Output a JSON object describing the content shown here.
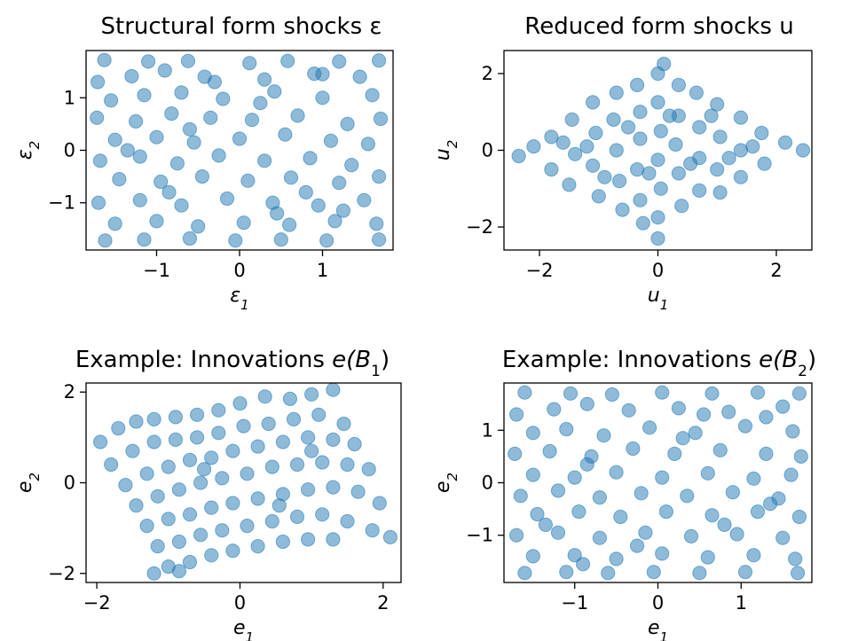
{
  "chart_data": [
    {
      "type": "scatter",
      "title": "Structural form shocks ε",
      "xlabel": "ε",
      "xlabel_sub": "1",
      "ylabel": "ε",
      "ylabel_sub": "2",
      "xlim": [
        -1.85,
        1.85
      ],
      "ylim": [
        -1.9,
        1.9
      ],
      "xticks": [
        -1,
        0,
        1
      ],
      "yticks": [
        -1,
        0,
        1
      ],
      "color": "#1f77b4",
      "points": [
        [
          -1.63,
          1.72
        ],
        [
          -1.1,
          1.69
        ],
        [
          -0.62,
          1.7
        ],
        [
          0.12,
          1.66
        ],
        [
          0.58,
          1.7
        ],
        [
          1.2,
          1.69
        ],
        [
          1.68,
          1.71
        ],
        [
          -1.71,
          1.3
        ],
        [
          -1.3,
          1.41
        ],
        [
          -0.9,
          1.52
        ],
        [
          -0.42,
          1.4
        ],
        [
          0.3,
          1.35
        ],
        [
          0.9,
          1.46
        ],
        [
          1.45,
          1.4
        ],
        [
          -1.55,
          0.95
        ],
        [
          -1.15,
          1.05
        ],
        [
          -0.7,
          1.1
        ],
        [
          -0.2,
          0.98
        ],
        [
          0.42,
          1.12
        ],
        [
          1.0,
          1.0
        ],
        [
          1.6,
          1.05
        ],
        [
          -1.72,
          0.62
        ],
        [
          -1.25,
          0.55
        ],
        [
          -0.82,
          0.7
        ],
        [
          -0.35,
          0.62
        ],
        [
          0.15,
          0.58
        ],
        [
          0.7,
          0.66
        ],
        [
          1.3,
          0.5
        ],
        [
          1.7,
          0.6
        ],
        [
          -1.5,
          0.2
        ],
        [
          -1.0,
          0.25
        ],
        [
          -0.55,
          0.15
        ],
        [
          0.0,
          0.22
        ],
        [
          0.55,
          0.3
        ],
        [
          1.1,
          0.18
        ],
        [
          1.55,
          0.12
        ],
        [
          -1.68,
          -0.2
        ],
        [
          -1.2,
          -0.12
        ],
        [
          -0.75,
          -0.25
        ],
        [
          -0.25,
          -0.1
        ],
        [
          0.3,
          -0.2
        ],
        [
          0.85,
          -0.15
        ],
        [
          1.35,
          -0.28
        ],
        [
          -1.45,
          -0.55
        ],
        [
          -0.95,
          -0.6
        ],
        [
          -0.45,
          -0.5
        ],
        [
          0.1,
          -0.58
        ],
        [
          0.62,
          -0.52
        ],
        [
          1.2,
          -0.62
        ],
        [
          1.68,
          -0.5
        ],
        [
          -1.7,
          -1.0
        ],
        [
          -1.2,
          -0.95
        ],
        [
          -0.7,
          -1.05
        ],
        [
          -0.15,
          -0.92
        ],
        [
          0.4,
          -1.0
        ],
        [
          0.95,
          -1.05
        ],
        [
          1.5,
          -0.95
        ],
        [
          -1.5,
          -1.4
        ],
        [
          -1.0,
          -1.35
        ],
        [
          -0.5,
          -1.45
        ],
        [
          0.05,
          -1.38
        ],
        [
          0.6,
          -1.42
        ],
        [
          1.15,
          -1.35
        ],
        [
          1.65,
          -1.4
        ],
        [
          -1.62,
          -1.72
        ],
        [
          -1.15,
          -1.7
        ],
        [
          -0.6,
          -1.68
        ],
        [
          -0.05,
          -1.72
        ],
        [
          0.5,
          -1.7
        ],
        [
          1.05,
          -1.72
        ],
        [
          1.68,
          -1.7
        ],
        [
          -0.85,
          -0.8
        ],
        [
          -0.6,
          0.4
        ],
        [
          0.25,
          0.9
        ],
        [
          0.8,
          -0.8
        ],
        [
          1.0,
          1.45
        ],
        [
          -1.35,
          0.0
        ],
        [
          0.45,
          -1.2
        ],
        [
          -0.3,
          1.3
        ],
        [
          1.25,
          -1.15
        ]
      ]
    },
    {
      "type": "scatter",
      "title": "Reduced form shocks u",
      "xlabel": "u",
      "xlabel_sub": "1",
      "ylabel": "u",
      "ylabel_sub": "2",
      "xlim": [
        -2.6,
        2.6
      ],
      "ylim": [
        -2.6,
        2.6
      ],
      "xticks": [
        -2,
        0,
        2
      ],
      "yticks": [
        -2,
        0,
        2
      ],
      "color": "#1f77b4",
      "points": [
        [
          -2.35,
          -0.15
        ],
        [
          -2.1,
          0.1
        ],
        [
          -1.8,
          0.35
        ],
        [
          -1.8,
          -0.5
        ],
        [
          -1.45,
          0.8
        ],
        [
          -1.4,
          -0.1
        ],
        [
          -1.5,
          -0.9
        ],
        [
          -1.1,
          1.25
        ],
        [
          -1.05,
          0.45
        ],
        [
          -1.1,
          -0.4
        ],
        [
          -1.0,
          -1.2
        ],
        [
          -0.7,
          1.5
        ],
        [
          -0.75,
          0.8
        ],
        [
          -0.7,
          0.0
        ],
        [
          -0.65,
          -0.8
        ],
        [
          -0.6,
          -1.55
        ],
        [
          -0.35,
          1.7
        ],
        [
          -0.3,
          1.0
        ],
        [
          -0.3,
          0.3
        ],
        [
          -0.35,
          -0.5
        ],
        [
          -0.3,
          -1.3
        ],
        [
          -0.25,
          -1.9
        ],
        [
          0.0,
          2.0
        ],
        [
          0.0,
          1.25
        ],
        [
          0.05,
          0.5
        ],
        [
          0.0,
          -0.25
        ],
        [
          0.05,
          -1.0
        ],
        [
          0.0,
          -1.75
        ],
        [
          0.0,
          -2.3
        ],
        [
          0.1,
          2.25
        ],
        [
          0.35,
          1.7
        ],
        [
          0.35,
          0.9
        ],
        [
          0.3,
          0.15
        ],
        [
          0.35,
          -0.6
        ],
        [
          0.4,
          -1.45
        ],
        [
          0.65,
          1.5
        ],
        [
          0.7,
          0.6
        ],
        [
          0.7,
          -0.2
        ],
        [
          0.7,
          -1.05
        ],
        [
          1.0,
          1.2
        ],
        [
          1.05,
          0.35
        ],
        [
          1.0,
          -0.5
        ],
        [
          1.05,
          -1.1
        ],
        [
          1.4,
          0.85
        ],
        [
          1.4,
          0.0
        ],
        [
          1.4,
          -0.7
        ],
        [
          1.75,
          0.45
        ],
        [
          1.8,
          -0.35
        ],
        [
          2.15,
          0.2
        ],
        [
          2.45,
          0.0
        ],
        [
          -1.2,
          0.1
        ],
        [
          0.55,
          -0.35
        ],
        [
          -0.5,
          0.6
        ],
        [
          0.9,
          0.9
        ],
        [
          -0.9,
          -0.7
        ],
        [
          1.2,
          -0.2
        ],
        [
          -0.15,
          -0.6
        ],
        [
          0.2,
          0.9
        ],
        [
          -1.6,
          0.2
        ],
        [
          1.6,
          0.1
        ]
      ]
    },
    {
      "type": "scatter",
      "title": "Example: Innovations e(B1)",
      "title_text": "Example: Innovations ",
      "title_math": "e(B",
      "title_math_sub": "1",
      "title_math_end": ")",
      "xlabel": "e",
      "xlabel_sub": "1",
      "ylabel": "e",
      "ylabel_sub": "2",
      "xlim": [
        -2.15,
        2.25
      ],
      "ylim": [
        -2.2,
        2.2
      ],
      "xticks": [
        -2,
        0,
        2
      ],
      "yticks": [
        -2,
        0,
        2
      ],
      "color": "#1f77b4",
      "points": [
        [
          -1.95,
          0.9
        ],
        [
          -1.7,
          1.2
        ],
        [
          -1.45,
          1.35
        ],
        [
          -1.2,
          1.4
        ],
        [
          -0.9,
          1.45
        ],
        [
          -0.6,
          1.5
        ],
        [
          -0.3,
          1.6
        ],
        [
          0.0,
          1.75
        ],
        [
          0.35,
          1.9
        ],
        [
          0.7,
          1.85
        ],
        [
          1.0,
          1.95
        ],
        [
          1.3,
          2.05
        ],
        [
          -1.8,
          0.4
        ],
        [
          -1.5,
          0.7
        ],
        [
          -1.2,
          0.9
        ],
        [
          -0.9,
          0.95
        ],
        [
          -0.6,
          1.0
        ],
        [
          -0.3,
          1.1
        ],
        [
          0.05,
          1.25
        ],
        [
          0.4,
          1.3
        ],
        [
          0.75,
          1.4
        ],
        [
          1.1,
          1.5
        ],
        [
          1.45,
          1.3
        ],
        [
          -1.6,
          -0.05
        ],
        [
          -1.3,
          0.2
        ],
        [
          -1.0,
          0.35
        ],
        [
          -0.7,
          0.5
        ],
        [
          -0.4,
          0.55
        ],
        [
          -0.1,
          0.7
        ],
        [
          0.25,
          0.8
        ],
        [
          0.6,
          0.9
        ],
        [
          0.95,
          1.0
        ],
        [
          1.3,
          0.95
        ],
        [
          1.6,
          0.85
        ],
        [
          -1.45,
          -0.5
        ],
        [
          -1.15,
          -0.3
        ],
        [
          -0.85,
          -0.15
        ],
        [
          -0.55,
          0.0
        ],
        [
          -0.25,
          0.1
        ],
        [
          0.1,
          0.2
        ],
        [
          0.45,
          0.35
        ],
        [
          0.8,
          0.4
        ],
        [
          1.15,
          0.45
        ],
        [
          1.5,
          0.4
        ],
        [
          1.8,
          0.3
        ],
        [
          -1.3,
          -0.95
        ],
        [
          -1.0,
          -0.8
        ],
        [
          -0.7,
          -0.7
        ],
        [
          -0.4,
          -0.55
        ],
        [
          -0.1,
          -0.45
        ],
        [
          0.25,
          -0.35
        ],
        [
          0.6,
          -0.25
        ],
        [
          0.95,
          -0.15
        ],
        [
          1.3,
          -0.1
        ],
        [
          1.65,
          -0.2
        ],
        [
          1.95,
          -0.45
        ],
        [
          -1.15,
          -1.4
        ],
        [
          -0.85,
          -1.3
        ],
        [
          -0.55,
          -1.15
        ],
        [
          -0.25,
          -1.05
        ],
        [
          0.1,
          -0.95
        ],
        [
          0.45,
          -0.85
        ],
        [
          0.8,
          -0.75
        ],
        [
          1.15,
          -0.7
        ],
        [
          1.5,
          -0.85
        ],
        [
          1.85,
          -1.05
        ],
        [
          2.1,
          -1.2
        ],
        [
          -1.0,
          -1.85
        ],
        [
          -0.7,
          -1.75
        ],
        [
          -0.4,
          -1.6
        ],
        [
          -0.1,
          -1.5
        ],
        [
          0.25,
          -1.4
        ],
        [
          0.6,
          -1.3
        ],
        [
          0.95,
          -1.25
        ],
        [
          1.3,
          -1.25
        ],
        [
          -1.2,
          -2.0
        ],
        [
          -0.85,
          -1.95
        ],
        [
          0.55,
          -0.5
        ],
        [
          -0.5,
          0.3
        ],
        [
          1.0,
          0.7
        ]
      ]
    },
    {
      "type": "scatter",
      "title": "Example: Innovations e(B2)",
      "title_text": "Example: Innovations ",
      "title_math": "e(B",
      "title_math_sub": "2",
      "title_math_end": ")",
      "xlabel": "e",
      "xlabel_sub": "1",
      "ylabel": "e",
      "ylabel_sub": "2",
      "xlim": [
        -1.85,
        1.85
      ],
      "ylim": [
        -1.9,
        1.9
      ],
      "xticks": [
        -1,
        0,
        1
      ],
      "yticks": [
        -1,
        0,
        1
      ],
      "color": "#1f77b4",
      "points": [
        [
          -1.6,
          1.72
        ],
        [
          -1.05,
          1.7
        ],
        [
          -0.55,
          1.68
        ],
        [
          0.05,
          1.72
        ],
        [
          0.65,
          1.7
        ],
        [
          1.2,
          1.72
        ],
        [
          1.7,
          1.7
        ],
        [
          -1.7,
          1.3
        ],
        [
          -1.25,
          1.4
        ],
        [
          -0.85,
          1.5
        ],
        [
          -0.35,
          1.38
        ],
        [
          0.25,
          1.42
        ],
        [
          0.85,
          1.35
        ],
        [
          1.5,
          1.45
        ],
        [
          -1.5,
          0.95
        ],
        [
          -1.1,
          1.02
        ],
        [
          -0.65,
          0.9
        ],
        [
          -0.1,
          1.05
        ],
        [
          0.45,
          0.95
        ],
        [
          1.05,
          1.08
        ],
        [
          1.62,
          0.98
        ],
        [
          -1.72,
          0.55
        ],
        [
          -1.3,
          0.6
        ],
        [
          -0.8,
          0.5
        ],
        [
          -0.3,
          0.65
        ],
        [
          0.2,
          0.55
        ],
        [
          0.75,
          0.62
        ],
        [
          1.3,
          0.55
        ],
        [
          1.72,
          0.5
        ],
        [
          -1.5,
          0.15
        ],
        [
          -1.0,
          0.1
        ],
        [
          -0.5,
          0.2
        ],
        [
          0.05,
          0.1
        ],
        [
          0.6,
          0.18
        ],
        [
          1.15,
          0.08
        ],
        [
          1.6,
          0.15
        ],
        [
          -1.65,
          -0.25
        ],
        [
          -1.2,
          -0.15
        ],
        [
          -0.7,
          -0.28
        ],
        [
          -0.2,
          -0.2
        ],
        [
          0.35,
          -0.25
        ],
        [
          0.9,
          -0.18
        ],
        [
          1.45,
          -0.3
        ],
        [
          -1.45,
          -0.6
        ],
        [
          -0.95,
          -0.55
        ],
        [
          -0.45,
          -0.65
        ],
        [
          0.1,
          -0.55
        ],
        [
          0.65,
          -0.62
        ],
        [
          1.2,
          -0.55
        ],
        [
          1.7,
          -0.65
        ],
        [
          -1.7,
          -1.0
        ],
        [
          -1.2,
          -0.95
        ],
        [
          -0.7,
          -1.05
        ],
        [
          -0.15,
          -0.95
        ],
        [
          0.4,
          -1.02
        ],
        [
          0.95,
          -0.98
        ],
        [
          1.5,
          -1.05
        ],
        [
          -1.5,
          -1.4
        ],
        [
          -1.0,
          -1.38
        ],
        [
          -0.5,
          -1.45
        ],
        [
          0.05,
          -1.35
        ],
        [
          0.6,
          -1.42
        ],
        [
          1.15,
          -1.38
        ],
        [
          1.65,
          -1.45
        ],
        [
          -1.6,
          -1.72
        ],
        [
          -1.1,
          -1.7
        ],
        [
          -0.6,
          -1.72
        ],
        [
          -0.05,
          -1.7
        ],
        [
          0.5,
          -1.72
        ],
        [
          1.05,
          -1.7
        ],
        [
          1.68,
          -1.72
        ],
        [
          -0.85,
          0.35
        ],
        [
          0.3,
          0.85
        ],
        [
          0.8,
          -0.8
        ],
        [
          -1.35,
          -0.8
        ],
        [
          1.3,
          1.25
        ],
        [
          -0.25,
          -1.2
        ],
        [
          0.55,
          1.3
        ],
        [
          -0.9,
          -1.55
        ],
        [
          1.35,
          -0.4
        ]
      ]
    }
  ]
}
